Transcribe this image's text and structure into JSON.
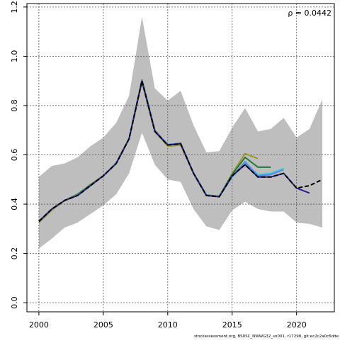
{
  "chart_data": {
    "type": "line",
    "annotation": "ρ = 0.0442",
    "footnote": "stockassessment.org, BS0SC_NWWG32_sn001, r17298, git:ec2c2a0c6dde",
    "x": [
      2000,
      2001,
      2002,
      2003,
      2004,
      2005,
      2006,
      2007,
      2008,
      2009,
      2010,
      2011,
      2012,
      2013,
      2014,
      2015,
      2016,
      2017,
      2018,
      2019,
      2020,
      2021,
      2022
    ],
    "band": {
      "color": "#bebebe",
      "upper": [
        0.51,
        0.555,
        0.565,
        0.59,
        0.635,
        0.67,
        0.73,
        0.84,
        1.16,
        0.87,
        0.82,
        0.86,
        0.72,
        0.61,
        0.615,
        0.71,
        0.79,
        0.695,
        0.705,
        0.75,
        0.67,
        0.705,
        0.825
      ],
      "lower": [
        0.22,
        0.26,
        0.305,
        0.325,
        0.36,
        0.395,
        0.44,
        0.525,
        0.69,
        0.56,
        0.5,
        0.49,
        0.38,
        0.31,
        0.295,
        0.375,
        0.41,
        0.38,
        0.37,
        0.37,
        0.325,
        0.32,
        0.305
      ]
    },
    "series": [
      {
        "color": "#9a9a2a",
        "dashed": false,
        "values": [
          0.325,
          0.375,
          0.415,
          0.44,
          0.48,
          0.515,
          0.565,
          0.665,
          0.895,
          0.695,
          0.635,
          0.64,
          0.525,
          0.435,
          0.43,
          0.525,
          0.605,
          0.585,
          null,
          null,
          null,
          null,
          null
        ]
      },
      {
        "color": "#1e7a3a",
        "dashed": false,
        "values": [
          0.33,
          0.38,
          0.415,
          0.44,
          0.478,
          0.515,
          0.567,
          0.667,
          0.905,
          0.7,
          0.64,
          0.648,
          0.527,
          0.437,
          0.432,
          0.52,
          0.59,
          0.55,
          0.55,
          null,
          null,
          null,
          null
        ]
      },
      {
        "color": "#40c8e0",
        "dashed": false,
        "values": [
          0.33,
          0.38,
          0.415,
          0.437,
          0.476,
          0.515,
          0.566,
          0.666,
          0.902,
          0.697,
          0.642,
          0.647,
          0.526,
          0.436,
          0.431,
          0.51,
          0.565,
          0.52,
          0.525,
          0.545,
          null,
          null,
          null
        ]
      },
      {
        "color": "#5a8ae0",
        "dashed": false,
        "values": [
          0.33,
          0.38,
          0.415,
          0.436,
          0.476,
          0.515,
          0.566,
          0.666,
          0.902,
          0.697,
          0.642,
          0.647,
          0.526,
          0.436,
          0.431,
          0.512,
          0.572,
          0.515,
          0.52,
          0.54,
          null,
          null,
          null
        ]
      },
      {
        "color": "#2c1f8a",
        "dashed": false,
        "values": [
          0.33,
          0.38,
          0.415,
          0.435,
          0.475,
          0.515,
          0.565,
          0.665,
          0.9,
          0.695,
          0.64,
          0.645,
          0.525,
          0.435,
          0.43,
          0.515,
          0.56,
          0.51,
          0.51,
          0.525,
          0.465,
          0.445,
          null
        ]
      },
      {
        "color": "#000000",
        "dashed": true,
        "values": [
          0.33,
          0.38,
          0.415,
          0.435,
          0.475,
          0.515,
          0.565,
          0.665,
          0.9,
          0.695,
          0.64,
          0.645,
          0.525,
          0.435,
          0.43,
          0.515,
          0.56,
          0.51,
          0.51,
          0.525,
          0.465,
          0.475,
          0.5
        ]
      }
    ],
    "xlim": [
      1999.07,
      2022.93
    ],
    "ylim": [
      -0.037,
      1.214
    ],
    "xticks": [
      2000,
      2005,
      2010,
      2015,
      2020
    ],
    "yticks": [
      {
        "value": 0,
        "label": "0.0"
      },
      {
        "value": 0.2,
        "label": "0.2"
      },
      {
        "value": 0.4,
        "label": "0.4"
      },
      {
        "value": 0.6,
        "label": "0.6"
      },
      {
        "value": 0.8,
        "label": "0.8"
      },
      {
        "value": 1,
        "label": "1.0"
      },
      {
        "value": 1.2,
        "label": "1.2"
      }
    ],
    "grid": true
  }
}
